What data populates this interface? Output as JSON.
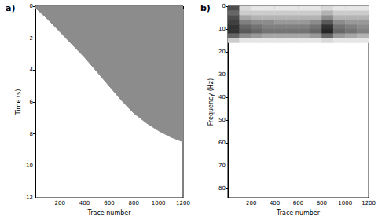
{
  "chart_data": [
    {
      "type": "area",
      "title": "a)",
      "x_label": "Trace number",
      "y_label": "Time (s)",
      "x": [
        1,
        100,
        200,
        300,
        400,
        500,
        600,
        700,
        800,
        900,
        1000,
        1100,
        1200
      ],
      "values": [
        0.1,
        0.8,
        1.6,
        2.4,
        3.2,
        4.1,
        5.0,
        5.9,
        6.7,
        7.3,
        7.8,
        8.2,
        8.5
      ],
      "color": "#8c8c8c",
      "xlim": [
        1,
        1200
      ],
      "xticks": [
        200,
        400,
        600,
        800,
        1000,
        1200
      ],
      "ylim": [
        0,
        12
      ],
      "yticks": [
        0,
        2,
        4,
        6,
        8,
        10,
        12
      ]
    },
    {
      "type": "heatmap",
      "title": "b)",
      "x_label": "Trace number",
      "y_label": "Frequency (Hz)",
      "x_bins": [
        1,
        100,
        200,
        300,
        400,
        500,
        600,
        700,
        800,
        900,
        1000,
        1100,
        1200
      ],
      "y_bins": [
        0,
        2,
        4,
        6,
        8,
        10,
        12,
        14,
        16
      ],
      "cells": [
        [
          0.7,
          0.15,
          0.1,
          0.1,
          0.1,
          0.1,
          0.1,
          0.1,
          0.15,
          0.1,
          0.1,
          0.1
        ],
        [
          0.6,
          0.2,
          0.2,
          0.2,
          0.2,
          0.2,
          0.2,
          0.2,
          0.3,
          0.2,
          0.2,
          0.2
        ],
        [
          0.7,
          0.35,
          0.3,
          0.3,
          0.3,
          0.3,
          0.3,
          0.3,
          0.45,
          0.3,
          0.3,
          0.3
        ],
        [
          0.75,
          0.5,
          0.45,
          0.45,
          0.4,
          0.4,
          0.4,
          0.45,
          0.65,
          0.45,
          0.4,
          0.4
        ],
        [
          0.8,
          0.6,
          0.55,
          0.5,
          0.5,
          0.5,
          0.5,
          0.55,
          0.8,
          0.55,
          0.5,
          0.45
        ],
        [
          0.8,
          0.65,
          0.6,
          0.55,
          0.55,
          0.55,
          0.55,
          0.6,
          0.85,
          0.6,
          0.55,
          0.5
        ],
        [
          0.6,
          0.45,
          0.4,
          0.35,
          0.35,
          0.35,
          0.35,
          0.4,
          0.6,
          0.4,
          0.35,
          0.3
        ],
        [
          0.2,
          0.1,
          0.1,
          0.1,
          0.1,
          0.1,
          0.1,
          0.1,
          0.15,
          0.1,
          0.1,
          0.1
        ]
      ],
      "value_range": [
        0,
        1
      ],
      "xlim": [
        1,
        1200
      ],
      "xticks": [
        200,
        400,
        600,
        800,
        1000,
        1200
      ],
      "ylim": [
        0,
        84
      ],
      "yticks": [
        0,
        10,
        20,
        30,
        40,
        50,
        60,
        70,
        80
      ]
    }
  ]
}
